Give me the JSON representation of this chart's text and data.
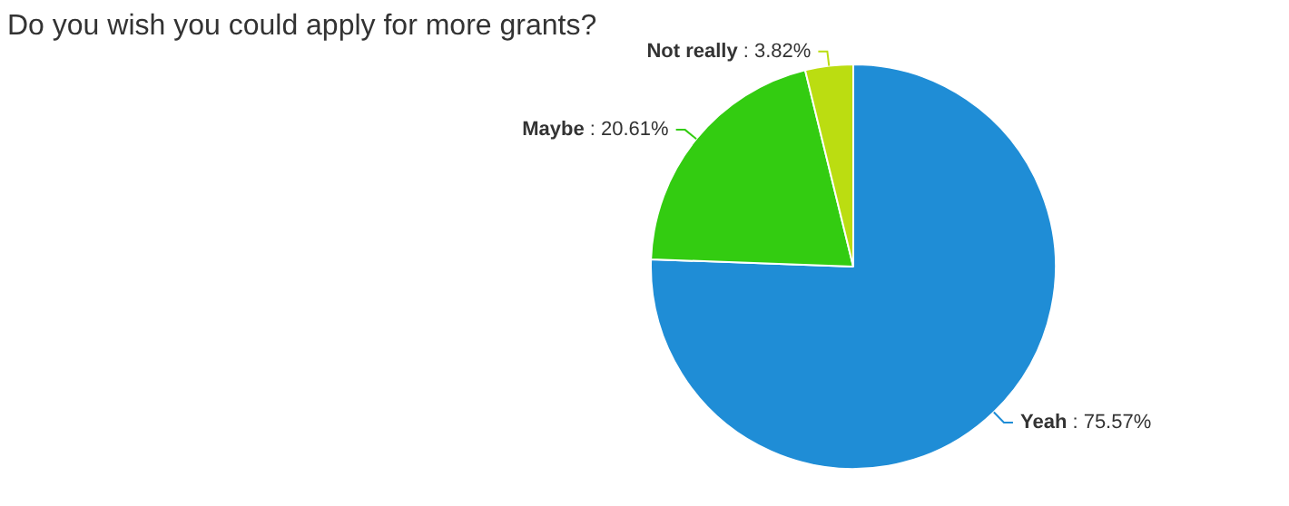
{
  "chart_data": {
    "type": "pie",
    "title": "Do you wish you could apply for more grants?",
    "categories": [
      "Yeah",
      "Maybe",
      "Not really"
    ],
    "values": [
      75.57,
      20.61,
      3.82
    ],
    "colors": [
      "#1f8dd6",
      "#33cc11",
      "#bbdd11"
    ],
    "value_labels": [
      ": 75.57%",
      ": 20.61%",
      ": 3.82%"
    ],
    "legend": false
  }
}
